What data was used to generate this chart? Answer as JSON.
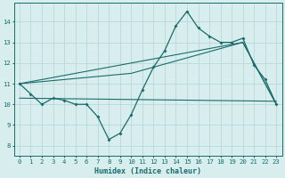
{
  "xlabel": "Humidex (Indice chaleur)",
  "xlim": [
    -0.5,
    23.5
  ],
  "ylim": [
    7.5,
    14.9
  ],
  "yticks": [
    8,
    9,
    10,
    11,
    12,
    13,
    14
  ],
  "xticks": [
    0,
    1,
    2,
    3,
    4,
    5,
    6,
    7,
    8,
    9,
    10,
    11,
    12,
    13,
    14,
    15,
    16,
    17,
    18,
    19,
    20,
    21,
    22,
    23
  ],
  "bg_color": "#d8eeee",
  "grid_color": "#b8d8d8",
  "line_color": "#1a6b6b",
  "line1_x": [
    0,
    1,
    2,
    3,
    4,
    5,
    6,
    7,
    8,
    9,
    10,
    11,
    12,
    13,
    14,
    15,
    16,
    17,
    18,
    19,
    20,
    21,
    22,
    23
  ],
  "line1_y": [
    11.0,
    10.5,
    10.0,
    10.3,
    10.2,
    10.0,
    10.0,
    9.4,
    8.3,
    8.6,
    9.5,
    10.7,
    11.8,
    12.6,
    13.8,
    14.5,
    13.7,
    13.3,
    13.0,
    13.0,
    13.2,
    11.9,
    11.2,
    10.0
  ],
  "line2_x": [
    0,
    20,
    23
  ],
  "line2_y": [
    11.0,
    13.0,
    10.0
  ],
  "line3_x": [
    0,
    23
  ],
  "line3_y": [
    10.3,
    10.15
  ],
  "line4_x": [
    0,
    10,
    20,
    23
  ],
  "line4_y": [
    11.0,
    11.5,
    13.0,
    10.0
  ]
}
